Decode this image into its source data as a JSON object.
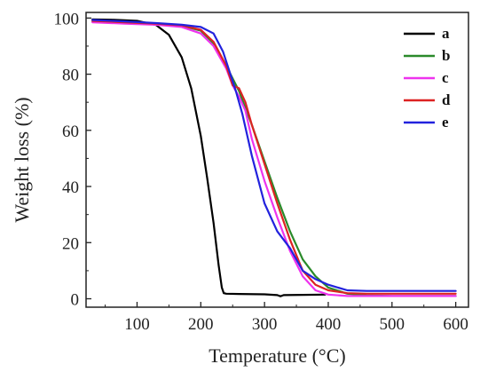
{
  "chart_data": {
    "type": "line",
    "title": "",
    "xlabel": "Temperature (°C)",
    "ylabel": "Weight loss (%)",
    "xlim": [
      20,
      620
    ],
    "ylim": [
      -3,
      102
    ],
    "xticks": [
      100,
      200,
      300,
      400,
      500,
      600
    ],
    "yticks": [
      0,
      20,
      40,
      60,
      80,
      100
    ],
    "grid": false,
    "legend_position": "top-right",
    "series": [
      {
        "name": "a",
        "color": "#000000",
        "x": [
          30,
          60,
          100,
          130,
          150,
          170,
          185,
          200,
          210,
          220,
          228,
          233,
          236,
          240,
          260,
          300,
          320,
          325,
          330,
          360,
          395
        ],
        "y": [
          99.5,
          99.4,
          99.0,
          97.5,
          94,
          86,
          75,
          58,
          43,
          27,
          12,
          4,
          2,
          1.8,
          1.7,
          1.6,
          1.3,
          0.9,
          1.3,
          1.4,
          1.5
        ]
      },
      {
        "name": "b",
        "color": "#2a8a2a",
        "x": [
          30,
          80,
          130,
          170,
          200,
          220,
          240,
          260,
          280,
          300,
          320,
          340,
          360,
          380,
          400,
          430,
          460,
          500,
          600
        ],
        "y": [
          98.8,
          98.3,
          97.8,
          97.3,
          95.5,
          91,
          83,
          74,
          62,
          49,
          36,
          24,
          14,
          8,
          4,
          1.8,
          1.2,
          1.0,
          1.0
        ]
      },
      {
        "name": "c",
        "color": "#ee33ee",
        "x": [
          30,
          80,
          130,
          170,
          200,
          220,
          240,
          250,
          260,
          270,
          280,
          300,
          320,
          340,
          360,
          380,
          400,
          430,
          460,
          500,
          600
        ],
        "y": [
          98.5,
          98.0,
          97.6,
          96.8,
          94.5,
          90,
          82,
          76,
          72,
          67,
          57,
          42,
          29,
          17,
          8,
          3,
          1.5,
          1.0,
          1.0,
          1.0,
          1.0
        ]
      },
      {
        "name": "d",
        "color": "#dd2222",
        "x": [
          30,
          80,
          130,
          170,
          200,
          220,
          240,
          250,
          260,
          270,
          280,
          300,
          320,
          340,
          360,
          380,
          400,
          430,
          460,
          500,
          600
        ],
        "y": [
          99.0,
          98.5,
          98.0,
          97.4,
          95.8,
          91.5,
          83,
          76,
          75,
          70,
          62,
          48,
          34,
          21,
          10,
          5,
          3,
          2,
          1.8,
          1.8,
          1.8
        ]
      },
      {
        "name": "e",
        "color": "#2222dd",
        "x": [
          30,
          80,
          130,
          170,
          200,
          220,
          235,
          245,
          255,
          265,
          280,
          300,
          320,
          340,
          360,
          380,
          400,
          430,
          460,
          500,
          600
        ],
        "y": [
          99.3,
          98.8,
          98.2,
          97.6,
          96.8,
          94.5,
          88,
          81,
          74,
          66,
          51,
          34,
          24,
          18,
          10,
          7,
          5,
          3,
          2.8,
          2.8,
          2.8
        ]
      }
    ]
  }
}
